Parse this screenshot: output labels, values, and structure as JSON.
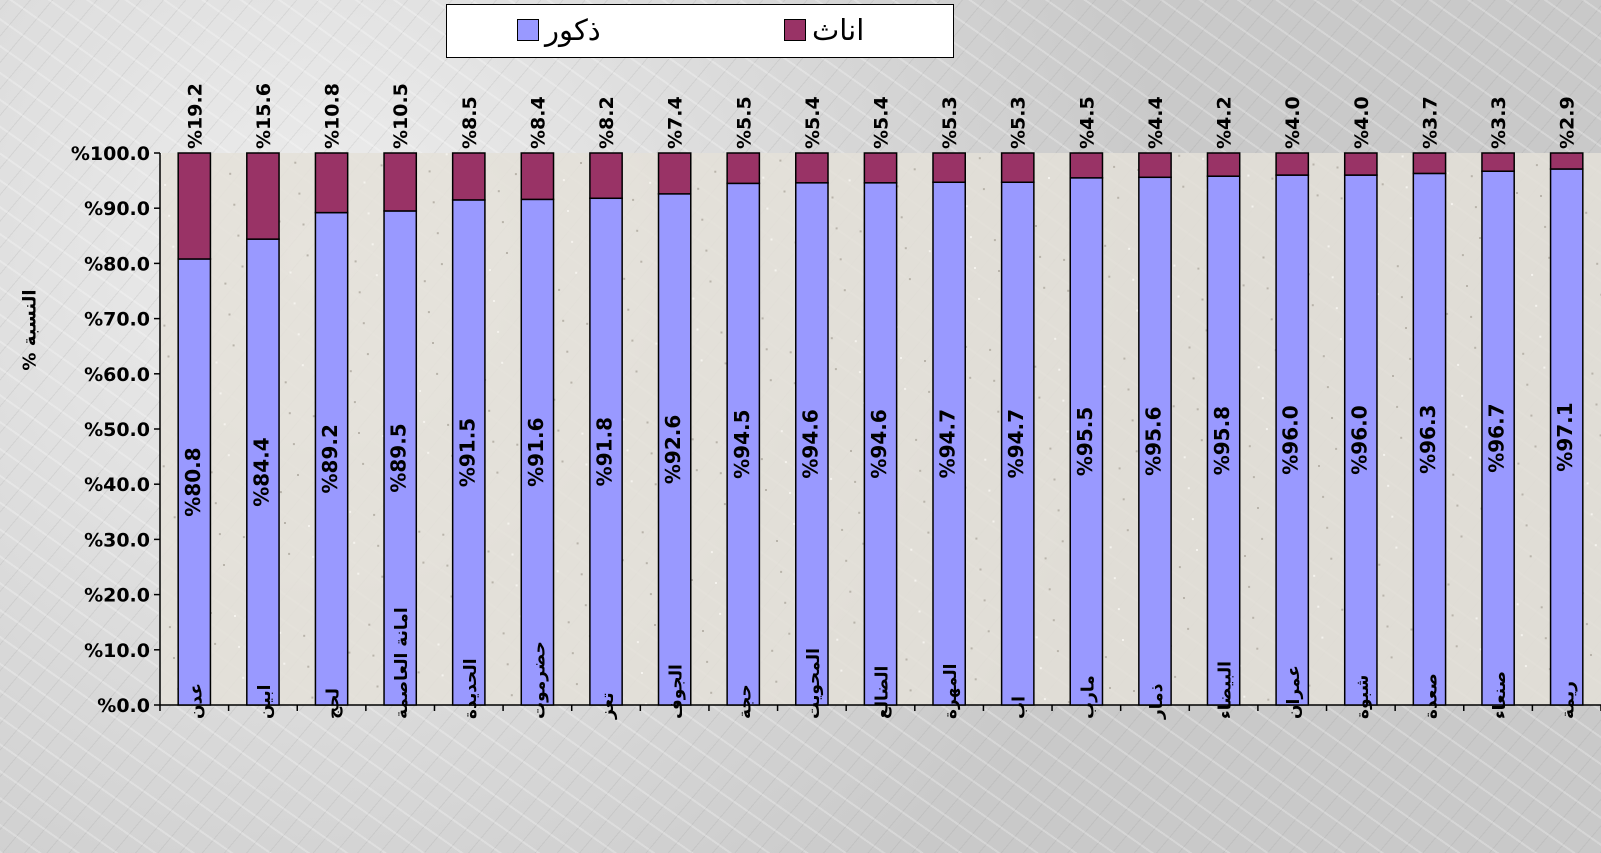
{
  "chart_data": {
    "type": "bar",
    "stacked": true,
    "categories": [
      "عدن",
      "ابين",
      "لحج",
      "امانة العاصمة",
      "الحديدة",
      "حضرموت",
      "تعز",
      "الجوف",
      "حجة",
      "المحويت",
      "الضالع",
      "المهرة",
      "اب",
      "مارب",
      "ذمار",
      "البيضاء",
      "عمران",
      "شبوة",
      "صعدة",
      "صنعاء",
      "ريمة"
    ],
    "series": [
      {
        "name": "ذكور",
        "color": "#9999ff",
        "values": [
          80.8,
          84.4,
          89.2,
          89.5,
          91.5,
          91.6,
          91.8,
          92.6,
          94.5,
          94.6,
          94.6,
          94.7,
          94.7,
          95.5,
          95.6,
          95.8,
          96.0,
          96.0,
          96.3,
          96.7,
          97.1
        ],
        "labels": [
          "%80.8",
          "%84.4",
          "%89.2",
          "%89.5",
          "%91.5",
          "%91.6",
          "%91.8",
          "%92.6",
          "%94.5",
          "%94.6",
          "%94.6",
          "%94.7",
          "%94.7",
          "%95.5",
          "%95.6",
          "%95.8",
          "%96.0",
          "%96.0",
          "%96.3",
          "%96.7",
          "%97.1"
        ]
      },
      {
        "name": "اناث",
        "color": "#993366",
        "values": [
          19.2,
          15.6,
          10.8,
          10.5,
          8.5,
          8.4,
          8.2,
          7.4,
          5.5,
          5.4,
          5.4,
          5.3,
          5.3,
          4.5,
          4.4,
          4.2,
          4.0,
          4.0,
          3.7,
          3.3,
          2.9
        ],
        "labels": [
          "%19.2",
          "%15.6",
          "%10.8",
          "%10.5",
          "%8.5",
          "%8.4",
          "%8.2",
          "%7.4",
          "%5.5",
          "%5.4",
          "%5.4",
          "%5.3",
          "%5.3",
          "%4.5",
          "%4.4",
          "%4.2",
          "%4.0",
          "%4.0",
          "%3.7",
          "%3.3",
          "%2.9"
        ]
      }
    ],
    "ylabel": "النسبة %",
    "ylim": [
      0,
      100
    ],
    "yticks": [
      "%0.0",
      "%10.0",
      "%20.0",
      "%30.0",
      "%40.0",
      "%50.0",
      "%60.0",
      "%70.0",
      "%80.0",
      "%90.0",
      "%100.0"
    ],
    "legend_position": "top-center",
    "grid": false
  },
  "legend": {
    "female_label": "اناث",
    "male_label": "ذكور"
  }
}
